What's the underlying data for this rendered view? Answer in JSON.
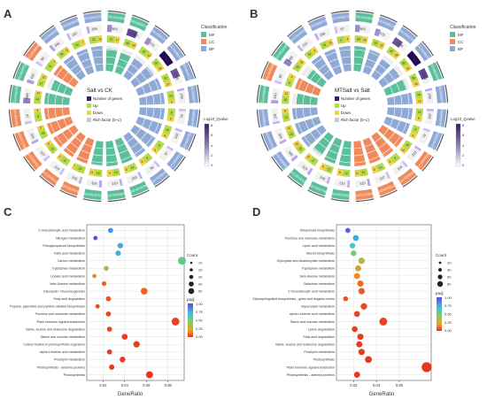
{
  "panels": {
    "A": {
      "letter": "A",
      "center_title": "Salt vs CK",
      "legend_title": "Classification",
      "classes": [
        {
          "name": "MF",
          "color": "#5cbf9b"
        },
        {
          "name": "CC",
          "color": "#f08a5d"
        },
        {
          "name": "BP",
          "color": "#8fa9d6"
        }
      ],
      "keys": [
        "Number of genes",
        "Up",
        "Down",
        "Rich factor (0~1)"
      ],
      "key_colors": [
        "#3a1a6e",
        "#b8d94a",
        "#efd34a",
        "#c9c9c9"
      ],
      "gradient_title": "-Log10_Qvalue",
      "gradient_ticks": [
        "8",
        "6",
        "4",
        "2",
        "0"
      ],
      "sector_labels": [
        "GO:0016491",
        "GO:0003824",
        "GO:0055114",
        "GO:0008152",
        "GO:0044710",
        "GO:0005975",
        "GO:0016052",
        "GO:0044262",
        "GO:0006073",
        "GO:0005976",
        "GO:0016798",
        "GO:0004553",
        "GO:0016757",
        "GO:0005576",
        "GO:0005618",
        "GO:0030312",
        "GO:0071944",
        "GO:0044421",
        "GO:0016787",
        "GO:0046914",
        "GO:0048046",
        "GO:0006950",
        "GO:0009628",
        "GO:0042221"
      ],
      "sector_class": [
        "MF",
        "MF",
        "BP",
        "BP",
        "BP",
        "BP",
        "BP",
        "BP",
        "BP",
        "BP",
        "MF",
        "MF",
        "MF",
        "CC",
        "CC",
        "CC",
        "CC",
        "CC",
        "MF",
        "MF",
        "CC",
        "BP",
        "BP",
        "BP"
      ],
      "counts": [
        "583",
        "1240",
        "575",
        "1838",
        "1090",
        "258",
        "79",
        "192",
        "97",
        "96",
        "233",
        "210",
        "324",
        "222",
        "104",
        "107",
        "325",
        "87",
        "688",
        "410",
        "90",
        "340",
        "187",
        "309"
      ],
      "up": [
        "31",
        "56",
        "32",
        "90",
        "62",
        "23",
        "8",
        "15",
        "9",
        "9",
        "14",
        "13",
        "18",
        "23",
        "12",
        "13",
        "25",
        "8",
        "44",
        "17",
        "11",
        "24",
        "15",
        "22"
      ],
      "down": [
        "17",
        "40",
        "14",
        "66",
        "37",
        "9",
        "5",
        "8",
        "5",
        "5",
        "8",
        "9",
        "11",
        "7",
        "4",
        "6",
        "9",
        "3",
        "22",
        "15",
        "3",
        "14",
        "7",
        "10"
      ]
    },
    "B": {
      "letter": "B",
      "center_title": "MTSalt vs Salt",
      "legend_title": "Classification",
      "classes": [
        {
          "name": "MF",
          "color": "#5cbf9b"
        },
        {
          "name": "CC",
          "color": "#f08a5d"
        },
        {
          "name": "BP",
          "color": "#8fa9d6"
        }
      ],
      "keys": [
        "Number of genes",
        "Up",
        "Down",
        "Rich factor (0~1)"
      ],
      "key_colors": [
        "#3a1a6e",
        "#b8d94a",
        "#efd34a",
        "#c9c9c9"
      ],
      "gradient_title": "-Log10_Qvalue",
      "gradient_ticks": [
        "8",
        "6",
        "4",
        "2",
        "0"
      ],
      "sector_labels": [
        "GO:0016491",
        "GO:0055114",
        "GO:0044710",
        "GO:0008152",
        "GO:0003824",
        "GO:0005975",
        "GO:0044262",
        "GO:0016052",
        "GO:0005576",
        "GO:0005618",
        "GO:0030312",
        "GO:0071944",
        "GO:0004553",
        "GO:0016798",
        "GO:0016757",
        "GO:0006950",
        "GO:0042221",
        "GO:0009628",
        "GO:0046914",
        "GO:0048046",
        "GO:0016787",
        "GO:0010033",
        "GO:0009719",
        "GO:0006073"
      ],
      "sector_class": [
        "MF",
        "BP",
        "BP",
        "BP",
        "MF",
        "BP",
        "BP",
        "BP",
        "CC",
        "CC",
        "CC",
        "CC",
        "MF",
        "MF",
        "MF",
        "BP",
        "BP",
        "BP",
        "MF",
        "CC",
        "MF",
        "BP",
        "BP",
        "BP"
      ],
      "counts": [
        "583",
        "575",
        "1090",
        "1838",
        "1240",
        "258",
        "192",
        "79",
        "222",
        "104",
        "107",
        "325",
        "210",
        "233",
        "324",
        "340",
        "309",
        "187",
        "410",
        "90",
        "688",
        "215",
        "260",
        "97"
      ],
      "up": [
        "34",
        "29",
        "49",
        "80",
        "58",
        "16",
        "12",
        "6",
        "16",
        "9",
        "10",
        "21",
        "12",
        "13",
        "17",
        "25",
        "23",
        "13",
        "20",
        "6",
        "29",
        "14",
        "15",
        "6"
      ],
      "down": [
        "25",
        "22",
        "34",
        "62",
        "43",
        "12",
        "9",
        "4",
        "10",
        "5",
        "6",
        "12",
        "8",
        "9",
        "10",
        "15",
        "14",
        "8",
        "12",
        "4",
        "18",
        "9",
        "10",
        "4"
      ]
    },
    "C": {
      "letter": "C",
      "xlabel": "GeneRatio",
      "xticks": [
        "0.02",
        "0.04",
        "0.06",
        "0.08"
      ],
      "count_title": "Count",
      "count_ticks": [
        "10",
        "20",
        "30",
        "40",
        "50"
      ],
      "padj_title": "padj",
      "padj_ticks": [
        "1.00",
        "0.75",
        "0.50",
        "0.25",
        "0.00"
      ]
    },
    "D": {
      "letter": "D",
      "xlabel": "GeneRatio",
      "xticks": [
        "0.02",
        "0.04",
        "0.06"
      ],
      "count_title": "Count",
      "count_ticks": [
        "20",
        "40",
        "60",
        "80"
      ],
      "padj_title": "padj",
      "padj_ticks": [
        "1.00",
        "0.75",
        "0.50",
        "0.25",
        "0.00"
      ]
    }
  },
  "chart_data": [
    {
      "panel": "C",
      "type": "scatter",
      "xlabel": "GeneRatio",
      "xlim": [
        0.005,
        0.095
      ],
      "categories": [
        "2-Oxocarboxylic acid metabolism",
        "Nitrogen metabolism",
        "Phenylpropanoid biosynthesis",
        "Fatty acid metabolism",
        "Carbon metabolism",
        "Tryptophan metabolism",
        "Linoleic acid metabolism",
        "beta-Alanine metabolism",
        "Glycolysis / Gluconeogenesis",
        "Fatty acid degradation",
        "Tropane, piperidine and pyridine alkaloid biosynthesis",
        "Fructose and mannose metabolism",
        "Plant hormone signal transduction",
        "Valine, leucine and isoleucine degradation",
        "Starch and sucrose metabolism",
        "Carbon fixation in photosynthetic organisms",
        "alpha-Linolenic acid metabolism",
        "Porphyrin metabolism",
        "Photosynthesis - antenna proteins",
        "Photosynthesis"
      ],
      "gene_ratio": [
        0.027,
        0.013,
        0.036,
        0.034,
        0.093,
        0.023,
        0.012,
        0.021,
        0.058,
        0.025,
        0.015,
        0.025,
        0.087,
        0.026,
        0.04,
        0.051,
        0.026,
        0.038,
        0.028,
        0.063
      ],
      "count": [
        10,
        6,
        13,
        12,
        35,
        9,
        5,
        8,
        22,
        10,
        6,
        10,
        32,
        10,
        15,
        19,
        10,
        14,
        11,
        24
      ],
      "padj": [
        0.85,
        1.0,
        0.8,
        0.78,
        0.6,
        0.4,
        0.2,
        0.12,
        0.12,
        0.08,
        0.06,
        0.05,
        0.04,
        0.05,
        0.03,
        0.03,
        0.02,
        0.02,
        0.01,
        0.01
      ]
    },
    {
      "panel": "D",
      "type": "scatter",
      "xlabel": "GeneRatio",
      "xlim": [
        0.005,
        0.088
      ],
      "categories": [
        "Diterpenoid biosynthesis",
        "Fructose and mannose metabolism",
        "Lipoic acid metabolism",
        "Steroid biosynthesis",
        "Glyoxylate and dicarboxylate metabolism",
        "Tryptophan metabolism",
        "beta-Alanine metabolism",
        "Galactose metabolism",
        "2-Oxocarboxylic acid metabolism",
        "Glycosphingolipid biosynthesis - globo and isoglobo series",
        "Glycerolipid metabolism",
        "alpha-Linolenic acid metabolism",
        "Starch and sucrose metabolism",
        "Lysine degradation",
        "Fatty acid degradation",
        "Valine, leucine and isoleucine degradation",
        "Porphyrin metabolism",
        "Photosynthesis",
        "Plant hormone signal transduction",
        "Photosynthesis - antenna proteins"
      ],
      "gene_ratio": [
        0.015,
        0.022,
        0.019,
        0.02,
        0.027,
        0.024,
        0.023,
        0.026,
        0.027,
        0.013,
        0.029,
        0.023,
        0.046,
        0.021,
        0.026,
        0.025,
        0.027,
        0.033,
        0.084,
        0.023
      ],
      "count": [
        10,
        15,
        13,
        14,
        19,
        17,
        16,
        18,
        19,
        9,
        20,
        16,
        32,
        15,
        18,
        17,
        19,
        23,
        58,
        16
      ],
      "padj": [
        0.95,
        0.8,
        0.7,
        0.55,
        0.4,
        0.3,
        0.22,
        0.15,
        0.1,
        0.08,
        0.06,
        0.05,
        0.04,
        0.03,
        0.03,
        0.02,
        0.02,
        0.01,
        0.01,
        0.01
      ]
    }
  ]
}
